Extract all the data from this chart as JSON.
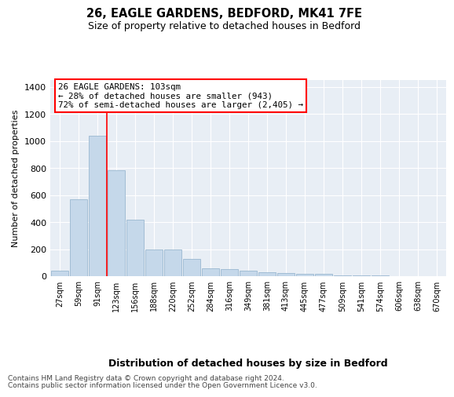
{
  "title1": "26, EAGLE GARDENS, BEDFORD, MK41 7FE",
  "title2": "Size of property relative to detached houses in Bedford",
  "xlabel": "Distribution of detached houses by size in Bedford",
  "ylabel": "Number of detached properties",
  "bar_color": "#c5d8ea",
  "bar_edge_color": "#9ab8d0",
  "plot_bg_color": "#e8eef5",
  "categories": [
    "27sqm",
    "59sqm",
    "91sqm",
    "123sqm",
    "156sqm",
    "188sqm",
    "220sqm",
    "252sqm",
    "284sqm",
    "316sqm",
    "349sqm",
    "381sqm",
    "413sqm",
    "445sqm",
    "477sqm",
    "509sqm",
    "541sqm",
    "574sqm",
    "606sqm",
    "638sqm",
    "670sqm"
  ],
  "values": [
    40,
    570,
    1040,
    785,
    420,
    200,
    195,
    130,
    60,
    55,
    40,
    30,
    25,
    20,
    15,
    8,
    5,
    3,
    2,
    0,
    0
  ],
  "ylim": [
    0,
    1450
  ],
  "yticks": [
    0,
    200,
    400,
    600,
    800,
    1000,
    1200,
    1400
  ],
  "red_line_x": 2.5,
  "annotation_text": "26 EAGLE GARDENS: 103sqm\n← 28% of detached houses are smaller (943)\n72% of semi-detached houses are larger (2,405) →",
  "footer1": "Contains HM Land Registry data © Crown copyright and database right 2024.",
  "footer2": "Contains public sector information licensed under the Open Government Licence v3.0."
}
